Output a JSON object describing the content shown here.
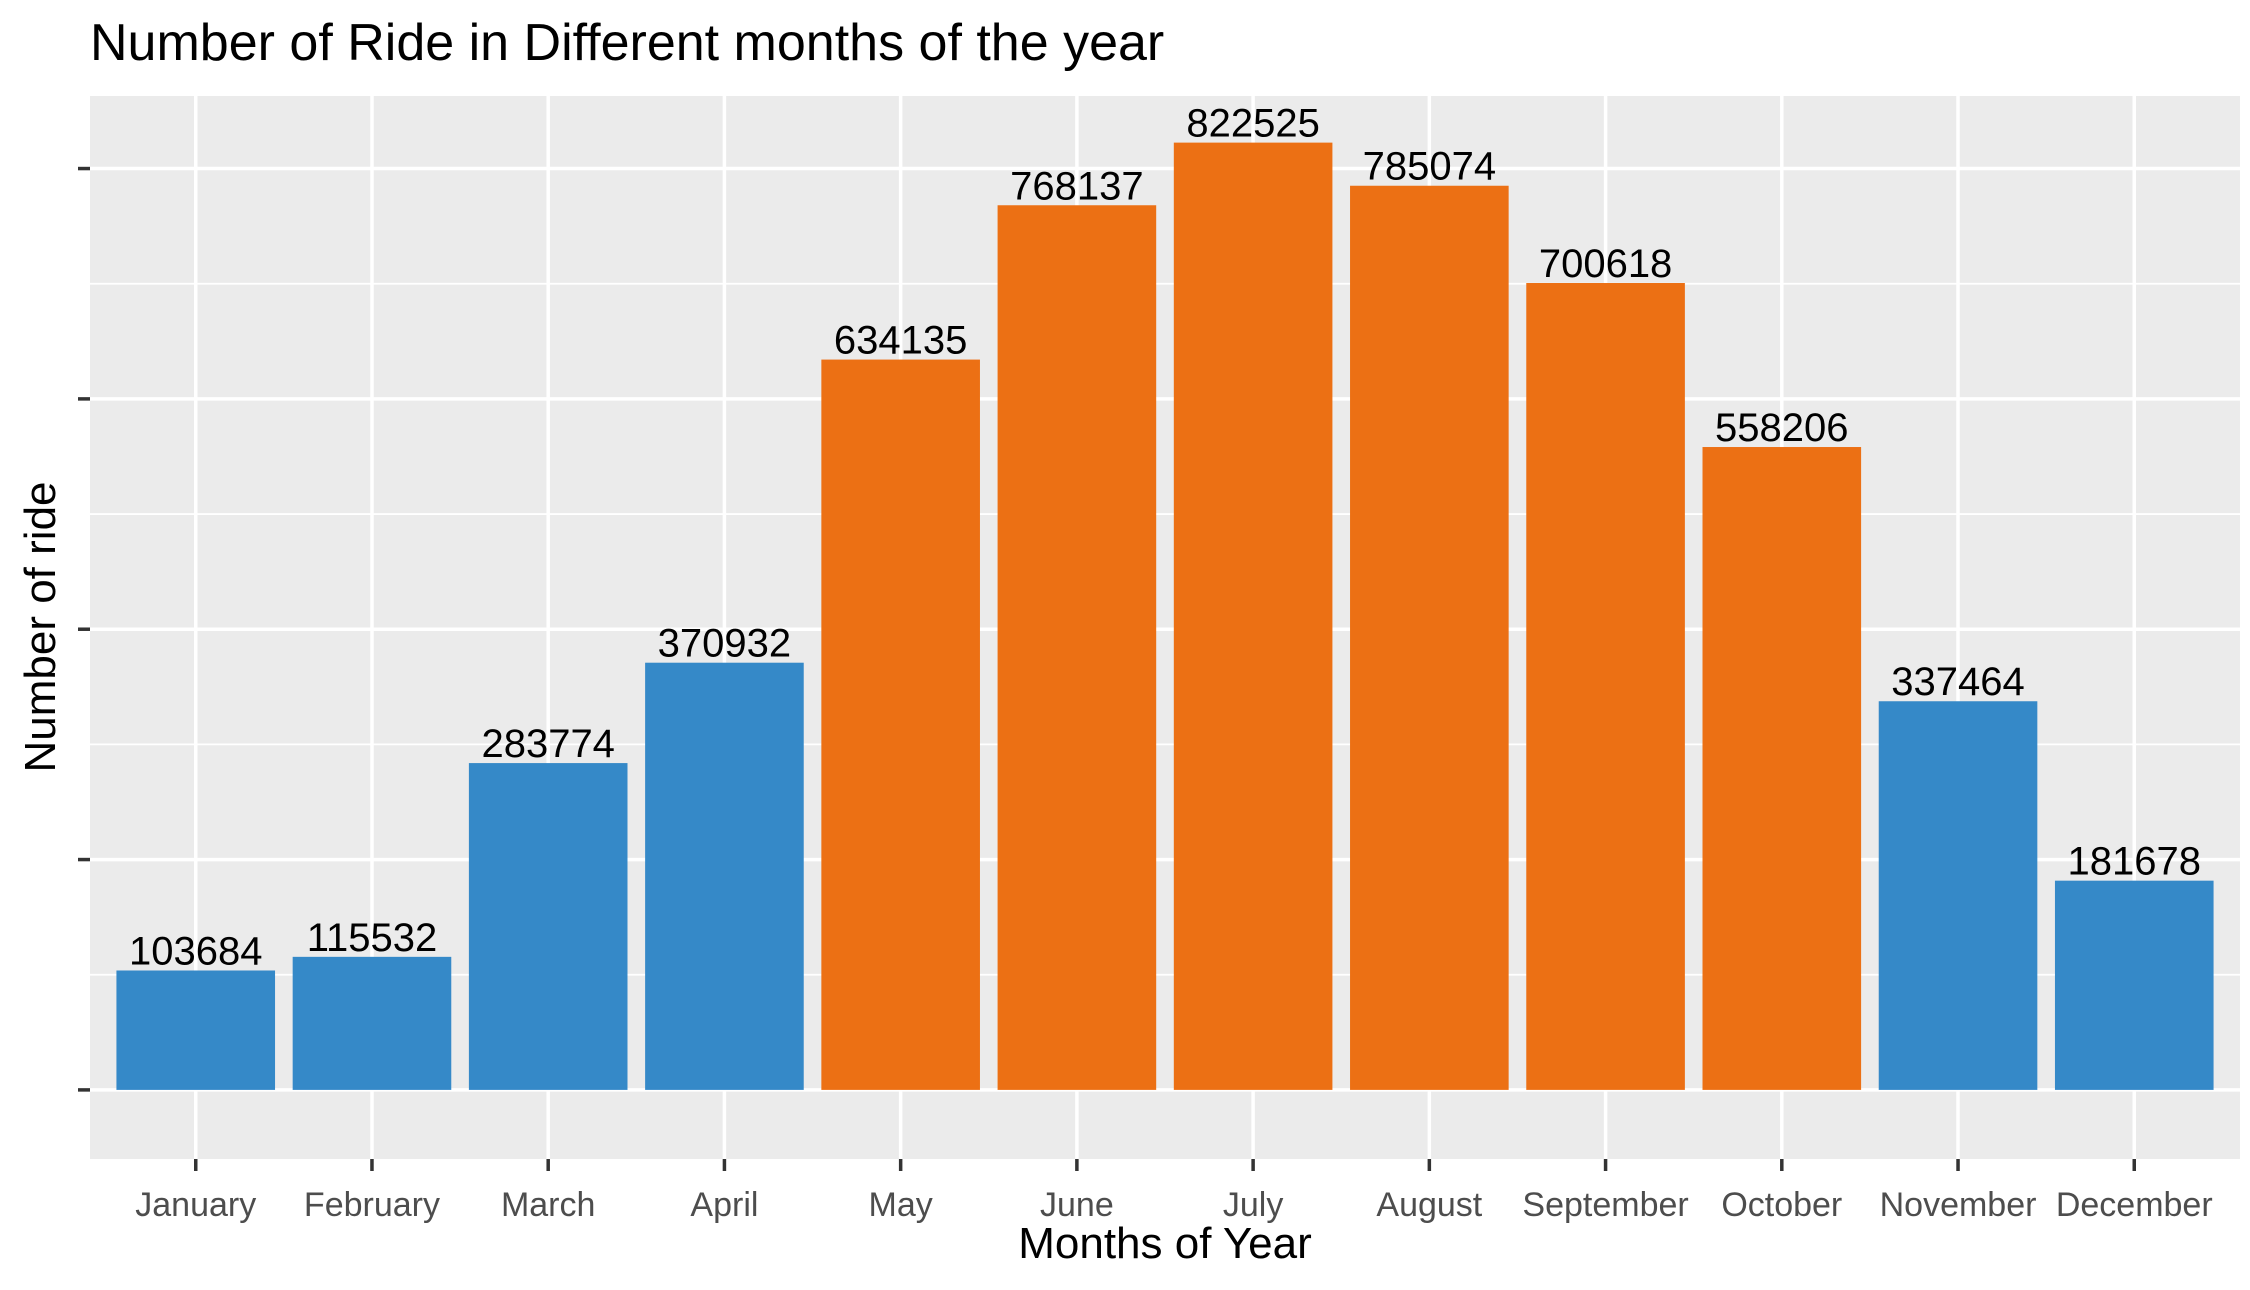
{
  "chart_data": {
    "type": "bar",
    "title": "Number of Ride in Different months of the year",
    "xlabel": "Months of Year",
    "ylabel": "Number of ride",
    "categories": [
      "January",
      "February",
      "March",
      "April",
      "May",
      "June",
      "July",
      "August",
      "September",
      "October",
      "November",
      "December"
    ],
    "values": [
      103684,
      115532,
      283774,
      370932,
      634135,
      768137,
      822525,
      785074,
      700618,
      558206,
      337464,
      181678
    ],
    "bar_colors": [
      "#3589C8",
      "#3589C8",
      "#3589C8",
      "#3589C8",
      "#EC7014",
      "#EC7014",
      "#EC7014",
      "#EC7014",
      "#EC7014",
      "#EC7014",
      "#3589C8",
      "#3589C8"
    ],
    "ylim": [
      -60000,
      863000
    ],
    "y_ticks": [
      0,
      200000,
      400000,
      600000,
      800000
    ],
    "y_tick_labels_visible": false,
    "grid": true,
    "legend": "none",
    "colors": {
      "panel_background": "#EBEBEB",
      "grid": "#FFFFFF",
      "low_season": "#3589C8",
      "high_season": "#EC7014"
    }
  }
}
